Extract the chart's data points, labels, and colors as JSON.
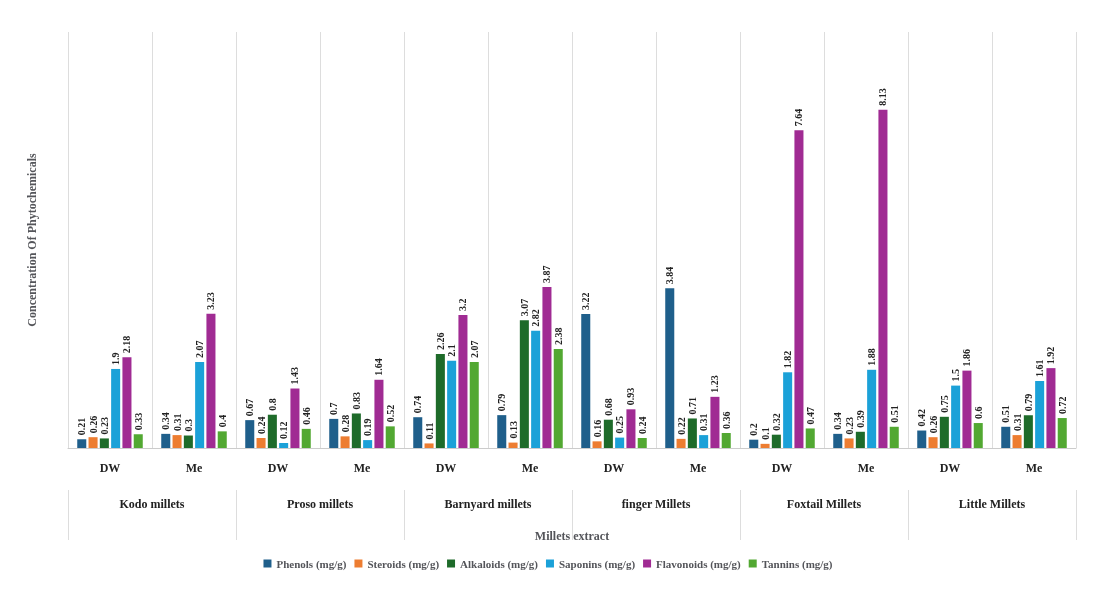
{
  "chart_data": {
    "type": "bar",
    "xlabel": "Millets extract",
    "ylabel": "Concentration Of Phytochemicals",
    "categories": [
      "DW",
      "Me",
      "DW",
      "Me",
      "DW",
      "Me",
      "DW",
      "Me",
      "DW",
      "Me",
      "DW",
      "Me"
    ],
    "annotations": [
      "Kodo millets",
      "Proso millets",
      "Barnyard millets",
      "finger Millets",
      "Foxtail Millets",
      "Little Millets"
    ],
    "series": [
      {
        "name": "Phenols (mg/g)",
        "color": "#1f5f8b",
        "values": [
          0.21,
          0.34,
          0.67,
          0.7,
          0.74,
          0.79,
          3.22,
          3.84,
          0.2,
          0.34,
          0.42,
          0.51
        ]
      },
      {
        "name": "Steroids (mg/g)",
        "color": "#ed7d31",
        "values": [
          0.26,
          0.31,
          0.24,
          0.28,
          0.11,
          0.13,
          0.16,
          0.22,
          0.1,
          0.23,
          0.26,
          0.31
        ]
      },
      {
        "name": "Alkaloids (mg/g)",
        "color": "#1e6b2a",
        "values": [
          0.23,
          0.3,
          0.8,
          0.83,
          2.26,
          3.07,
          0.68,
          0.71,
          0.32,
          0.39,
          0.75,
          0.79
        ]
      },
      {
        "name": "Saponins (mg/g)",
        "color": "#1ba1d8",
        "values": [
          1.9,
          2.07,
          0.12,
          0.19,
          2.1,
          2.82,
          0.25,
          0.31,
          1.82,
          1.88,
          1.5,
          1.61
        ]
      },
      {
        "name": "Flavonoids (mg/g)",
        "color": "#a02b93",
        "values": [
          2.18,
          3.23,
          1.43,
          1.64,
          3.2,
          3.87,
          0.93,
          1.23,
          7.64,
          8.13,
          1.86,
          1.92
        ]
      },
      {
        "name": "Tannins (mg/g)",
        "color": "#52a832",
        "values": [
          0.33,
          0.4,
          0.46,
          0.52,
          2.07,
          2.38,
          0.24,
          0.36,
          0.47,
          0.51,
          0.6,
          0.72
        ]
      }
    ],
    "data_labels": true,
    "grid": "x",
    "legend": "bottom"
  }
}
